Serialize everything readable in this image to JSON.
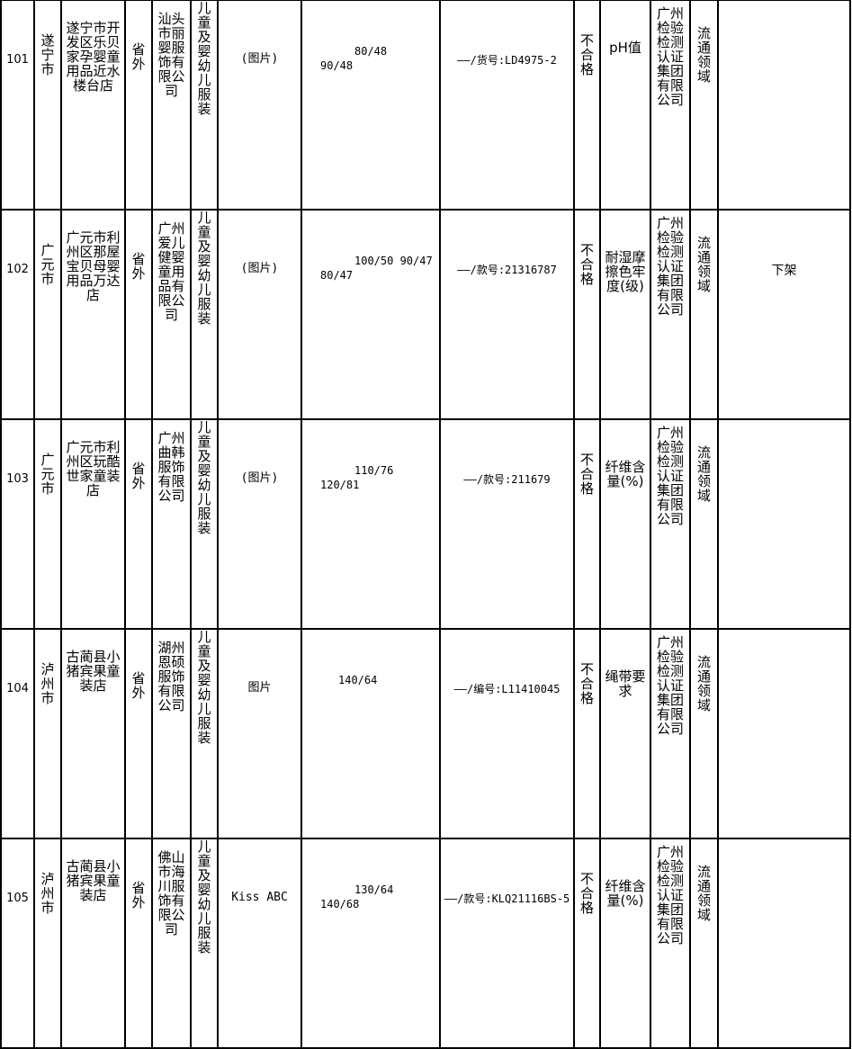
{
  "rows": [
    {
      "no": "101",
      "city": "遂宁市",
      "store": "遂宁市开发区乐贝家孕婴童用品近水楼台店",
      "province": "省外",
      "manufacturer": "汕头市丽婴服饰有限公司",
      "category": "儿童及婴幼儿服装",
      "product": "(图片)",
      "spec": [
        "80/48",
        "90/48"
      ],
      "model": "——/货号:LD4975-2",
      "result": "不合格",
      "item": "pH值",
      "lab": "广州检验检测认证集团有限公司",
      "field": "流通领域",
      "note": ""
    },
    {
      "no": "102",
      "city": "广元市",
      "store": "广元市利州区那屋宝贝母婴用品万达店",
      "province": "省外",
      "manufacturer": "广州爱儿健婴童用品有限公司",
      "category": "儿童及婴幼儿服装",
      "product": "(图片)",
      "spec": [
        "100/50 90/47",
        "80/47"
      ],
      "model": "——/款号:21316787",
      "result": "不合格",
      "item": "耐湿摩擦色牢度(级)",
      "lab": "广州检验检测认证集团有限公司",
      "field": "流通领域",
      "note": "下架"
    },
    {
      "no": "103",
      "city": "广元市",
      "store": "广元市利州区玩酷世家童装店",
      "province": "省外",
      "manufacturer": "广州曲韩服饰有限公司",
      "category": "儿童及婴幼儿服装",
      "product": "(图片)",
      "spec": [
        "110/76",
        "120/81"
      ],
      "model": "——/款号:211679",
      "result": "不合格",
      "item": "纤维含量(%)",
      "lab": "广州检验检测认证集团有限公司",
      "field": "流通领域",
      "note": ""
    },
    {
      "no": "104",
      "city": "泸州市",
      "store": "古蔺县小猪宾果童装店",
      "province": "省外",
      "manufacturer": "湖州恩硕服饰有限公司",
      "category": "儿童及婴幼儿服装",
      "product": "图片",
      "spec": [
        "140/64"
      ],
      "model": "——/编号:L11410045",
      "result": "不合格",
      "item": "绳带要求",
      "lab": "广州检验检测认证集团有限公司",
      "field": "流通领域",
      "note": ""
    },
    {
      "no": "105",
      "city": "泸州市",
      "store": "古蔺县小猪宾果童装店",
      "province": "省外",
      "manufacturer": "佛山市海川服饰有限公司",
      "category": "儿童及婴幼儿服装",
      "product": "Kiss ABC",
      "spec": [
        "130/64",
        "140/68"
      ],
      "model": "——/款号:KLQ21116BS-5",
      "result": "不合格",
      "item": "纤维含量(%)",
      "lab": "广州检验检测认证集团有限公司",
      "field": "流通领域",
      "note": ""
    }
  ]
}
